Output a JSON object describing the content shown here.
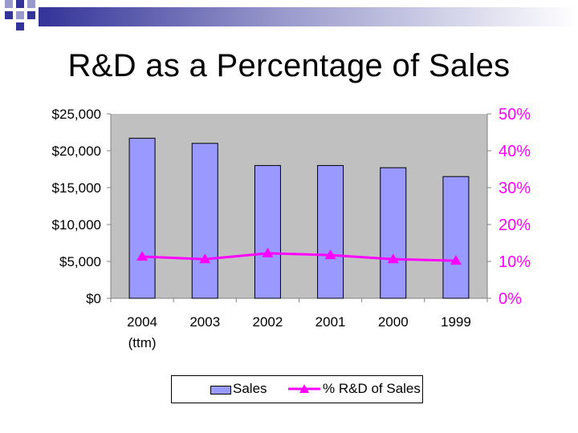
{
  "slide": {
    "title": "R&D as a Percentage of Sales"
  },
  "colors": {
    "bar_fill": "#9999ff",
    "line": "#ff00ff",
    "plot_bg": "#c0c0c0",
    "bullet_dark": "#333399",
    "bullet_light": "#9999cc"
  },
  "chart_data": {
    "type": "bar",
    "categories": [
      "2004 (ttm)",
      "2003",
      "2002",
      "2001",
      "2000",
      "1999"
    ],
    "category_lines": [
      [
        "2004",
        "(ttm)"
      ],
      [
        "2003"
      ],
      [
        "2002"
      ],
      [
        "2001"
      ],
      [
        "2000"
      ],
      [
        "1999"
      ]
    ],
    "series": [
      {
        "name": "Sales",
        "type": "bar",
        "axis": "left",
        "values": [
          21700,
          21000,
          18000,
          18000,
          17700,
          16500
        ]
      },
      {
        "name": "% R&D of Sales",
        "type": "line",
        "axis": "right",
        "marker": "triangle",
        "values": [
          11.3,
          10.6,
          12.2,
          11.7,
          10.6,
          10.2
        ]
      }
    ],
    "y_left": {
      "range": [
        0,
        25000
      ],
      "ticks": [
        "$25,000",
        "$20,000",
        "$15,000",
        "$10,000",
        "$5,000",
        "$0"
      ]
    },
    "y_right": {
      "range": [
        0,
        50
      ],
      "ticks": [
        "50%",
        "40%",
        "30%",
        "20%",
        "10%",
        "0%"
      ]
    },
    "legend": {
      "position": "bottom",
      "items": [
        "Sales",
        "% R&D of Sales"
      ]
    },
    "grid": false
  }
}
